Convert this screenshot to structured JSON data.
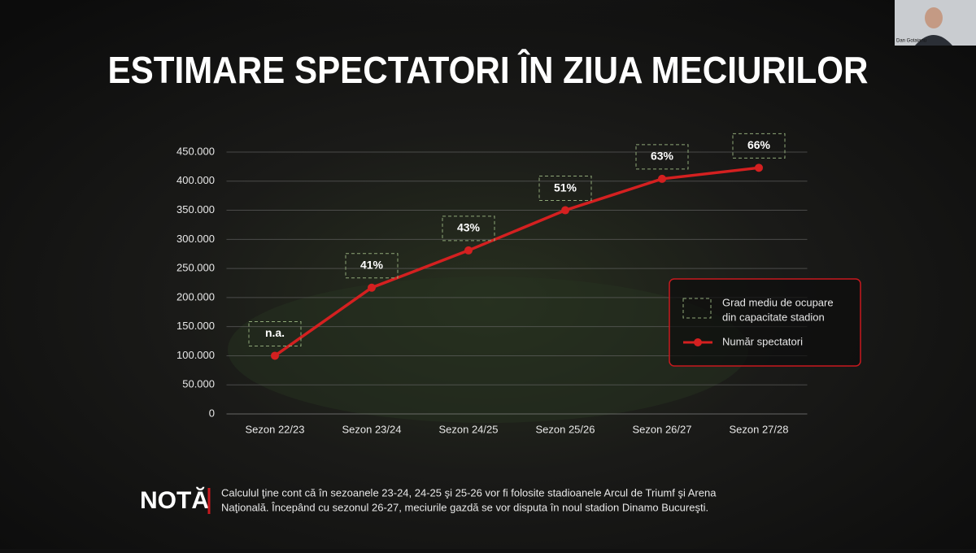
{
  "title": "ESTIMARE SPECTATORI ÎN ZIUA MECIURILOR",
  "chart_data": {
    "type": "line",
    "categories": [
      "Sezon 22/23",
      "Sezon 23/24",
      "Sezon 24/25",
      "Sezon 25/26",
      "Sezon 26/27",
      "Sezon 27/28"
    ],
    "series": [
      {
        "name": "Număr spectatori",
        "color": "#d42020",
        "values": [
          100000,
          217000,
          281000,
          350000,
          404000,
          423000
        ]
      }
    ],
    "box_labels": [
      "n.a.",
      "41%",
      "43%",
      "51%",
      "63%",
      "66%"
    ],
    "box_legend": [
      "Grad mediu de ocupare",
      "din capacitate stadion"
    ],
    "ylim": [
      0,
      450000
    ],
    "yticks": [
      0,
      {
        "value": 50000,
        "label": "50.000"
      },
      {
        "value": 100000,
        "label": "100.000"
      },
      {
        "value": 150000,
        "label": "150.000"
      },
      {
        "value": 200000,
        "label": "200.000"
      },
      {
        "value": 250000,
        "label": "250.000"
      },
      {
        "value": 300000,
        "label": "300.000"
      },
      {
        "value": 350000,
        "label": "350.000"
      },
      {
        "value": 400000,
        "label": "400.000"
      },
      {
        "value": 450000,
        "label": "450.000"
      }
    ],
    "grid": true
  },
  "note": {
    "heading": "NOTĂ",
    "lines": [
      "Calculul ţine cont că în sezoanele 23-24, 24-25 şi 25-26 vor fi folosite stadioanele Arcul de Triumf şi Arena",
      "Naţională. Începând cu sezonul 26-27, meciurile gazdă se vor disputa în noul stadion Dinamo Bucureşti."
    ]
  },
  "webcam_name": "Dan Gotaianu"
}
